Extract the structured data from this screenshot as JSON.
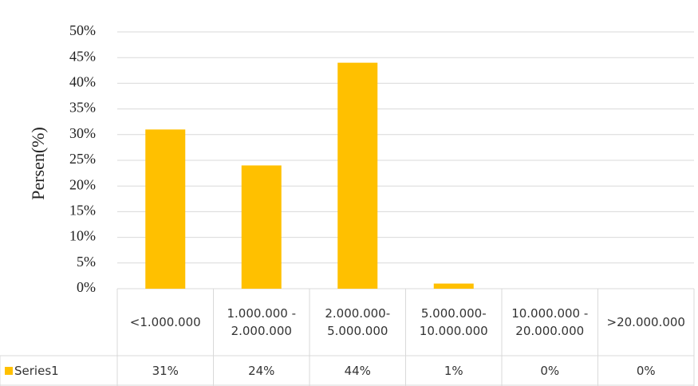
{
  "chart_data": {
    "type": "bar",
    "y_label": "Persen(%)",
    "categories": [
      "<1.000.000",
      "1.000.000 - 2.000.000",
      "2.000.000-5.000.000",
      "5.000.000-10.000.000",
      "10.000.000 - 20.000.000",
      ">20.000.000"
    ],
    "series": [
      {
        "name": "Series1",
        "color": "#ffc000",
        "values": [
          31,
          24,
          44,
          1,
          0,
          0
        ],
        "value_labels": [
          "31%",
          "24%",
          "44%",
          "1%",
          "0%",
          "0%"
        ]
      }
    ],
    "ylim": [
      0,
      50
    ],
    "yticks": [
      {
        "value": 0,
        "label": "0%"
      },
      {
        "value": 5,
        "label": "5%"
      },
      {
        "value": 10,
        "label": "10%"
      },
      {
        "value": 15,
        "label": "15%"
      },
      {
        "value": 20,
        "label": "20%"
      },
      {
        "value": 25,
        "label": "25%"
      },
      {
        "value": 30,
        "label": "30%"
      },
      {
        "value": 35,
        "label": "35%"
      },
      {
        "value": 40,
        "label": "40%"
      },
      {
        "value": 45,
        "label": "45%"
      },
      {
        "value": 50,
        "label": "50%"
      }
    ],
    "grid": true
  }
}
